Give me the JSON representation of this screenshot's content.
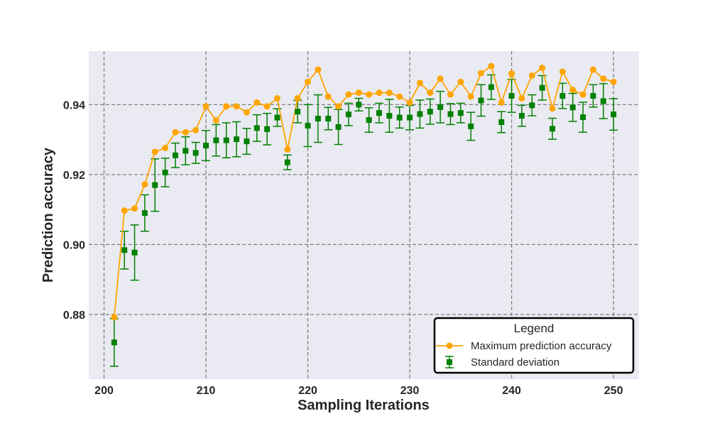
{
  "chart_data": {
    "type": "line",
    "xlabel": "Sampling Iterations",
    "ylabel": "Prediction accuracy",
    "xlim": [
      198.5,
      252.5
    ],
    "ylim": [
      0.8615,
      0.9553
    ],
    "xticks": [
      200,
      210,
      220,
      230,
      240,
      250
    ],
    "yticks": [
      0.88,
      0.9,
      0.92,
      0.94
    ],
    "xtick_labels": [
      "200",
      "210",
      "220",
      "230",
      "240",
      "250"
    ],
    "ytick_labels": [
      "0.88",
      "0.90",
      "0.92",
      "0.94"
    ],
    "grid": true,
    "legend": {
      "title": "Legend",
      "placement": "lower-right",
      "entries": [
        "Maximum prediction accuracy",
        "Standard deviation"
      ]
    },
    "x": [
      201,
      202,
      203,
      204,
      205,
      206,
      207,
      208,
      209,
      210,
      211,
      212,
      213,
      214,
      215,
      216,
      217,
      218,
      219,
      220,
      221,
      222,
      223,
      224,
      225,
      226,
      227,
      228,
      229,
      230,
      231,
      232,
      233,
      234,
      235,
      236,
      237,
      238,
      239,
      240,
      241,
      242,
      243,
      244,
      245,
      246,
      247,
      248,
      249,
      250
    ],
    "series": [
      {
        "name": "Maximum prediction accuracy",
        "color": "#ffa500",
        "marker": "circle",
        "values": [
          0.8792,
          0.9097,
          0.9103,
          0.9172,
          0.9265,
          0.9276,
          0.9321,
          0.9321,
          0.9327,
          0.9395,
          0.9355,
          0.9395,
          0.9395,
          0.9378,
          0.9406,
          0.9395,
          0.9418,
          0.9272,
          0.9418,
          0.9465,
          0.95,
          0.9423,
          0.9395,
          0.9429,
          0.9434,
          0.9429,
          0.9434,
          0.9434,
          0.9423,
          0.9406,
          0.9462,
          0.9434,
          0.9474,
          0.9429,
          0.9465,
          0.9423,
          0.949,
          0.951,
          0.9406,
          0.9489,
          0.9418,
          0.9483,
          0.9505,
          0.9389,
          0.9494,
          0.9442,
          0.9429,
          0.95,
          0.9474,
          0.9465
        ]
      },
      {
        "name": "Standard deviation",
        "color": "#008000",
        "marker": "square",
        "values": [
          0.872,
          0.8984,
          0.8977,
          0.909,
          0.917,
          0.9206,
          0.9255,
          0.9268,
          0.9262,
          0.9283,
          0.9298,
          0.9298,
          0.9301,
          0.9295,
          0.9333,
          0.933,
          0.9363,
          0.9235,
          0.938,
          0.934,
          0.936,
          0.936,
          0.9336,
          0.9372,
          0.94,
          0.9356,
          0.9376,
          0.9368,
          0.9363,
          0.9363,
          0.9373,
          0.938,
          0.9393,
          0.9373,
          0.9376,
          0.9338,
          0.9412,
          0.945,
          0.935,
          0.9425,
          0.9368,
          0.9398,
          0.9448,
          0.9331,
          0.9425,
          0.9392,
          0.9364,
          0.9425,
          0.941,
          0.9372
        ],
        "error": [
          0.0068,
          0.0054,
          0.0079,
          0.0052,
          0.0075,
          0.0041,
          0.0035,
          0.004,
          0.003,
          0.0043,
          0.0045,
          0.005,
          0.005,
          0.0037,
          0.0038,
          0.0045,
          0.0025,
          0.0021,
          0.0032,
          0.006,
          0.0068,
          0.0032,
          0.005,
          0.0032,
          0.0018,
          0.0035,
          0.0028,
          0.0047,
          0.003,
          0.0035,
          0.004,
          0.0036,
          0.0045,
          0.003,
          0.0028,
          0.004,
          0.0045,
          0.0035,
          0.003,
          0.0047,
          0.003,
          0.003,
          0.0035,
          0.003,
          0.0036,
          0.004,
          0.0043,
          0.0032,
          0.005,
          0.0045
        ]
      }
    ]
  },
  "colors": {
    "plot_background": "#eaeaf2",
    "grid": "#808080",
    "max_series": "#ffa500",
    "std_series": "#008000"
  }
}
